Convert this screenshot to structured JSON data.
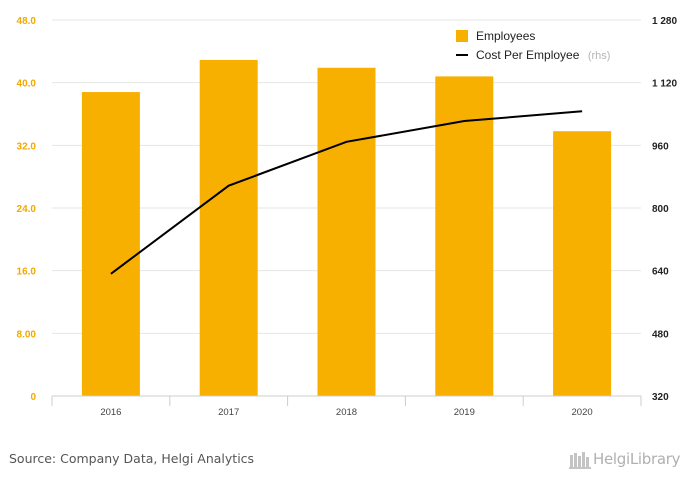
{
  "chart_data": {
    "type": "bar",
    "categories": [
      "2016",
      "2017",
      "2018",
      "2019",
      "2020"
    ],
    "series": [
      {
        "name": "Employees",
        "kind": "bar",
        "axis": "left",
        "color": "#f7b000",
        "values": [
          38.8,
          42.9,
          41.9,
          40.8,
          33.8
        ]
      },
      {
        "name": "Cost Per Employee",
        "suffix": "(rhs)",
        "kind": "line",
        "axis": "right",
        "color": "#000000",
        "values": [
          632,
          857,
          969,
          1022,
          1047
        ]
      }
    ],
    "left_axis": {
      "ylim": [
        0,
        48
      ],
      "ticks": [
        "0",
        "8.00",
        "16.0",
        "24.0",
        "32.0",
        "40.0",
        "48.0"
      ],
      "values": [
        0,
        8,
        16,
        24,
        32,
        40,
        48
      ]
    },
    "right_axis": {
      "ylim": [
        320,
        1280
      ],
      "ticks": [
        "320",
        "480",
        "640",
        "800",
        "960",
        "1 120",
        "1 280"
      ],
      "values": [
        320,
        480,
        640,
        800,
        960,
        1120,
        1280
      ]
    },
    "grid": true,
    "legend_position": "top-right"
  },
  "footer": {
    "source": "Source: Company Data, Helgi Analytics",
    "logo": "HelgiLibrary"
  }
}
